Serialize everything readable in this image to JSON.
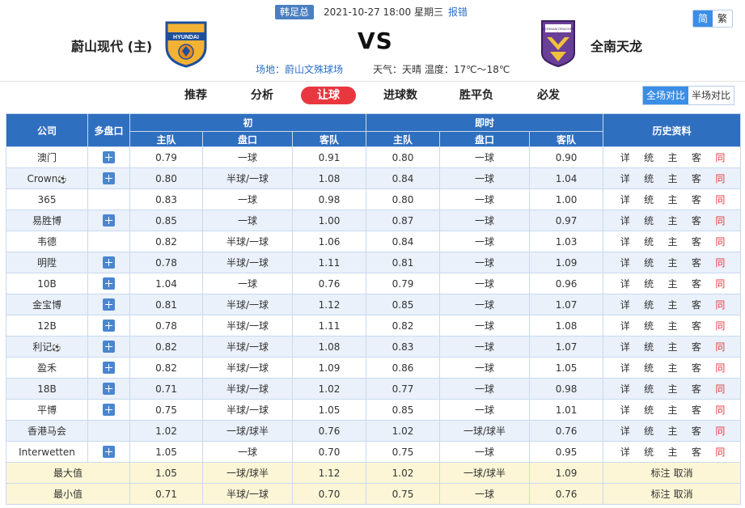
{
  "header": {
    "league": "韩足总",
    "datetime": "2021-10-27 18:00 星期三",
    "report": "报错",
    "lang": {
      "simplified": "简",
      "traditional": "繁"
    },
    "home_team": "蔚山现代 (主)",
    "away_team": "全南天龙",
    "vs": "VS",
    "venue": "场地：蔚山文殊球场",
    "weather": "天气：天晴  温度：17℃～18℃",
    "home_logo_text": "HYUNDAI",
    "away_logo_text": "JEONNAM DRAGONS"
  },
  "nav": {
    "tabs": [
      "推荐",
      "分析",
      "让球",
      "进球数",
      "胜平负",
      "必发"
    ],
    "active_tab": "让球",
    "full_match": "全场对比",
    "half_match": "半场对比"
  },
  "table": {
    "col_company": "公司",
    "col_multi": "多盘口",
    "group_initial": "初",
    "group_live": "即时",
    "col_history": "历史资料",
    "sub_home": "主队",
    "sub_line": "盘口",
    "sub_away": "客队",
    "history_links": [
      "详",
      "统",
      "主",
      "客",
      "同"
    ],
    "rows": [
      {
        "company": "澳门",
        "ball": false,
        "multi": true,
        "i_home": "0.79",
        "i_line": "一球",
        "i_away": "0.91",
        "l_home": "0.80",
        "l_line": "一球",
        "l_away": "0.90"
      },
      {
        "company": "Crown",
        "ball": true,
        "multi": true,
        "i_home": "0.80",
        "i_line": "半球/一球",
        "i_away": "1.08",
        "l_home": "0.84",
        "l_line": "一球",
        "l_away": "1.04"
      },
      {
        "company": "365",
        "ball": false,
        "multi": false,
        "i_home": "0.83",
        "i_line": "一球",
        "i_away": "0.98",
        "l_home": "0.80",
        "l_line": "一球",
        "l_away": "1.00"
      },
      {
        "company": "易胜博",
        "ball": false,
        "multi": true,
        "i_home": "0.85",
        "i_line": "一球",
        "i_away": "1.00",
        "l_home": "0.87",
        "l_line": "一球",
        "l_away": "0.97"
      },
      {
        "company": "韦德",
        "ball": false,
        "multi": false,
        "i_home": "0.82",
        "i_line": "半球/一球",
        "i_away": "1.06",
        "l_home": "0.84",
        "l_line": "一球",
        "l_away": "1.03"
      },
      {
        "company": "明陞",
        "ball": false,
        "multi": true,
        "i_home": "0.78",
        "i_line": "半球/一球",
        "i_away": "1.11",
        "l_home": "0.81",
        "l_line": "一球",
        "l_away": "1.09"
      },
      {
        "company": "10B",
        "ball": false,
        "multi": true,
        "i_home": "1.04",
        "i_line": "一球",
        "i_away": "0.76",
        "l_home": "0.79",
        "l_line": "一球",
        "l_away": "0.96"
      },
      {
        "company": "金宝博",
        "ball": false,
        "multi": true,
        "i_home": "0.81",
        "i_line": "半球/一球",
        "i_away": "1.12",
        "l_home": "0.85",
        "l_line": "一球",
        "l_away": "1.07"
      },
      {
        "company": "12B",
        "ball": false,
        "multi": true,
        "i_home": "0.78",
        "i_line": "半球/一球",
        "i_away": "1.11",
        "l_home": "0.82",
        "l_line": "一球",
        "l_away": "1.08"
      },
      {
        "company": "利记",
        "ball": true,
        "multi": true,
        "i_home": "0.82",
        "i_line": "半球/一球",
        "i_away": "1.08",
        "l_home": "0.83",
        "l_line": "一球",
        "l_away": "1.07"
      },
      {
        "company": "盈禾",
        "ball": false,
        "multi": true,
        "i_home": "0.82",
        "i_line": "半球/一球",
        "i_away": "1.09",
        "l_home": "0.86",
        "l_line": "一球",
        "l_away": "1.05"
      },
      {
        "company": "18B",
        "ball": false,
        "multi": true,
        "i_home": "0.71",
        "i_line": "半球/一球",
        "i_away": "1.02",
        "l_home": "0.77",
        "l_line": "一球",
        "l_away": "0.98"
      },
      {
        "company": "平博",
        "ball": false,
        "multi": true,
        "i_home": "0.75",
        "i_line": "半球/一球",
        "i_away": "1.05",
        "l_home": "0.85",
        "l_line": "一球",
        "l_away": "1.01"
      },
      {
        "company": "香港马会",
        "ball": false,
        "multi": false,
        "i_home": "1.02",
        "i_line": "一球/球半",
        "i_away": "0.76",
        "l_home": "1.02",
        "l_line": "一球/球半",
        "l_away": "0.76"
      },
      {
        "company": "Interwetten",
        "ball": false,
        "multi": true,
        "i_home": "1.05",
        "i_line": "一球",
        "i_away": "0.70",
        "l_home": "0.75",
        "l_line": "一球",
        "l_away": "0.95"
      }
    ],
    "summary": [
      {
        "label": "最大值",
        "i_home": "1.05",
        "i_line": "一球/球半",
        "i_away": "1.12",
        "l_home": "1.02",
        "l_line": "一球/球半",
        "l_away": "1.09"
      },
      {
        "label": "最小值",
        "i_home": "0.71",
        "i_line": "半球/一球",
        "i_away": "0.70",
        "l_home": "0.75",
        "l_line": "一球",
        "l_away": "0.76"
      }
    ],
    "summary_mark": "标注",
    "summary_cancel": "取消",
    "ball_icon": "⚽"
  },
  "colors": {
    "header_blue": "#2f6fbf",
    "active_red": "#e8373f",
    "row_alt": "#eaf1fb",
    "summary_bg": "#fcf6d6"
  }
}
